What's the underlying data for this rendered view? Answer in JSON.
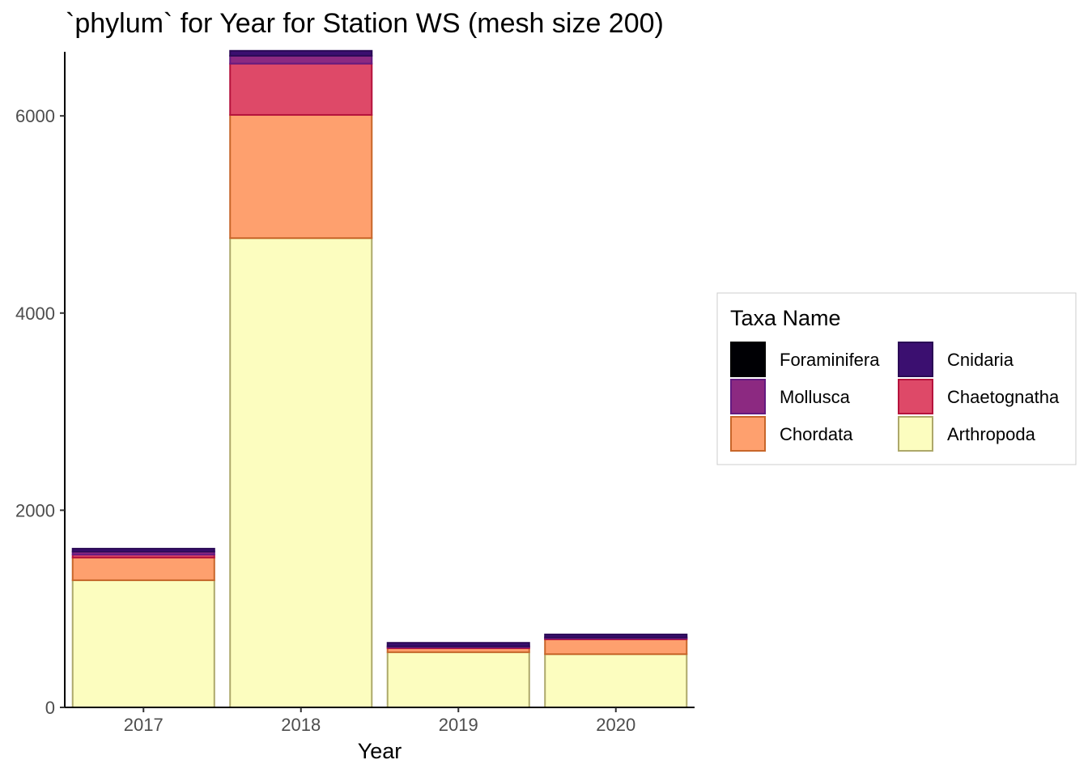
{
  "chart_data": {
    "type": "bar",
    "stacked": true,
    "title": "`phylum` for Year for Station WS (mesh size 200)",
    "xlabel": "Year",
    "ylabel": "",
    "categories": [
      "2017",
      "2018",
      "2019",
      "2020"
    ],
    "ylim": [
      0,
      6650
    ],
    "yticks": [
      0,
      2000,
      4000,
      6000
    ],
    "legend": {
      "title": "Taxa Name",
      "placement": "right",
      "order": [
        "Foraminifera",
        "Cnidaria",
        "Mollusca",
        "Chaetognatha",
        "Chordata",
        "Arthropoda"
      ]
    },
    "series": [
      {
        "name": "Arthropoda",
        "fill": "#FCFDBF",
        "stroke": "#ADA86A",
        "values": [
          1290,
          4760,
          560,
          540
        ]
      },
      {
        "name": "Chordata",
        "fill": "#FEA06E",
        "stroke": "#C8662A",
        "values": [
          230,
          1250,
          40,
          150
        ]
      },
      {
        "name": "Chaetognatha",
        "fill": "#DE4968",
        "stroke": "#B5123C",
        "values": [
          30,
          520,
          10,
          10
        ]
      },
      {
        "name": "Mollusca",
        "fill": "#8C2981",
        "stroke": "#641A80",
        "values": [
          30,
          80,
          10,
          10
        ]
      },
      {
        "name": "Cnidaria",
        "fill": "#3B0F70",
        "stroke": "#2A0A55",
        "values": [
          30,
          50,
          35,
          30
        ]
      },
      {
        "name": "Foraminifera",
        "fill": "#000004",
        "stroke": "#000000",
        "values": [
          0,
          0,
          0,
          0
        ]
      }
    ]
  }
}
